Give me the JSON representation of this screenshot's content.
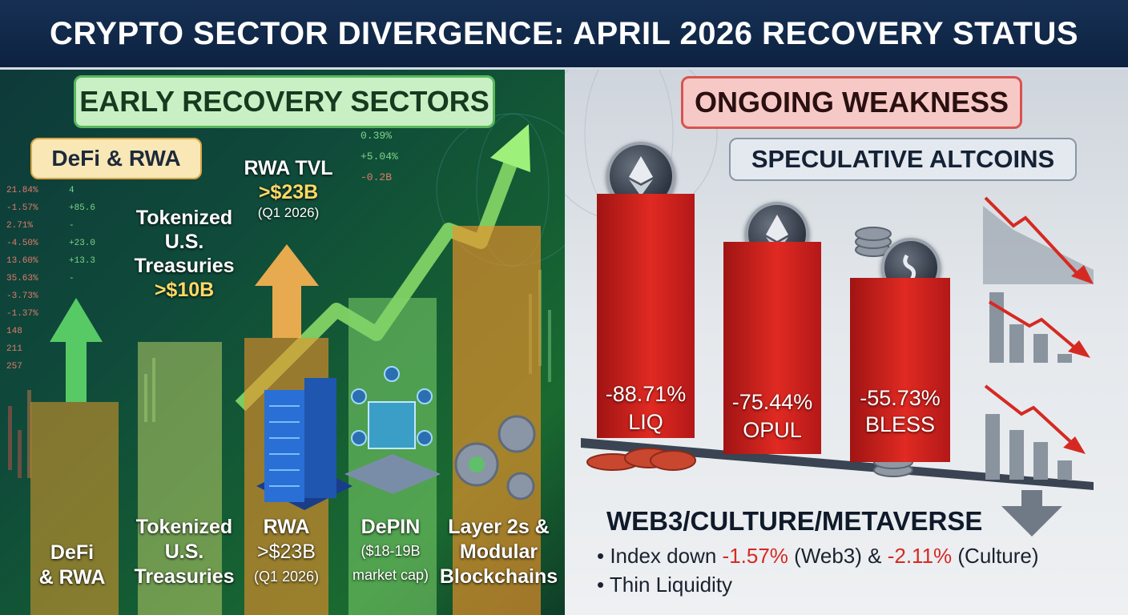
{
  "title": "CRYPTO SECTOR DIVERGENCE: APRIL 2026 RECOVERY STATUS",
  "left": {
    "heading": "EARLY RECOVERY SECTORS",
    "badge": "DeFi & RWA",
    "tickers_left": [
      "21.84%",
      "-1.57%",
      "2.71%",
      "-4.50%",
      "13.60%",
      "35.63%",
      "-3.73%",
      "-1.37%",
      "148",
      "211",
      "257"
    ],
    "tickers_right": [
      "4",
      "+85.6",
      "-",
      "+23.0",
      "+13.3",
      "-"
    ],
    "tickers_top": [
      "0.39%",
      "+5.04%",
      "-0.2B"
    ],
    "callout_treasuries": [
      "Tokenized",
      "U.S.",
      "Treasuries",
      ">$10B"
    ],
    "callout_rwa": [
      "RWA TVL",
      ">$23B",
      "(Q1 2026)"
    ],
    "bottom_labels": {
      "defi": [
        "DeFi",
        "& RWA"
      ],
      "treasuries": [
        "Tokenized",
        "U.S.",
        "Treasuries"
      ],
      "rwa": [
        "RWA",
        ">$23B",
        "(Q1 2026)"
      ],
      "depin": [
        "DePIN",
        "($18-19B",
        "market cap)"
      ],
      "layer2": [
        "Layer 2s &",
        "Modular",
        "Blockchains"
      ]
    }
  },
  "right": {
    "heading": "ONGOING WEAKNESS",
    "badge": "SPECULATIVE ALTCOINS",
    "bars": [
      {
        "pct": "-88.71%",
        "name": "LIQ"
      },
      {
        "pct": "-75.44%",
        "name": "OPUL"
      },
      {
        "pct": "-55.73%",
        "name": "BLESS"
      }
    ],
    "web3": {
      "heading": "WEB3/CULTURE/METAVERSE",
      "line1_a": "Index down ",
      "line1_b": "-1.57%",
      "line1_c": " (Web3) & ",
      "line1_d": "-2.11%",
      "line1_e": " (Culture)",
      "line2": "Thin Liquidity"
    }
  },
  "colors": {
    "red": "#e02a22",
    "green": "#6bd66b",
    "orange": "#f29a2e",
    "navy": "#0f2747"
  }
}
